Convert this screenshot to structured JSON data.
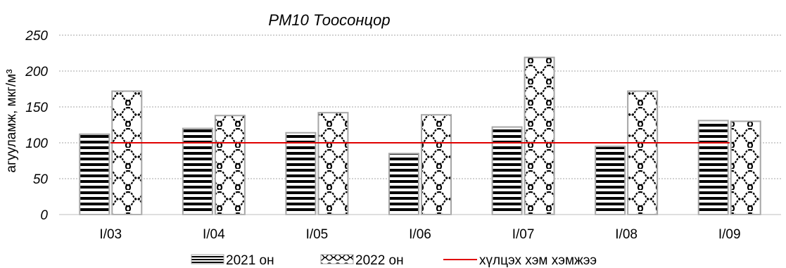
{
  "chart_data": {
    "type": "bar",
    "title": "PM10 Тоосонцор",
    "ylabel": "агууламж, мкг/м³",
    "xlabel": "",
    "ylim": [
      0,
      250
    ],
    "yticks": [
      "0",
      "50",
      "100",
      "150",
      "200",
      "250"
    ],
    "grid": "horizontal dotted",
    "legend": "bottom",
    "categories": [
      "I/03",
      "I/04",
      "I/05",
      "I/06",
      "I/07",
      "I/08",
      "I/09"
    ],
    "series": [
      {
        "name": "2021 он",
        "values": [
          112,
          120,
          114,
          85,
          122,
          95,
          131
        ],
        "pattern": "horizontal-lines"
      },
      {
        "name": "2022 он",
        "values": [
          172,
          138,
          142,
          139,
          219,
          172,
          130
        ],
        "pattern": "wave"
      }
    ],
    "reference_line": {
      "name": "хүлцэх хэм хэмжээ",
      "value": 100,
      "color": "#e00000"
    }
  }
}
